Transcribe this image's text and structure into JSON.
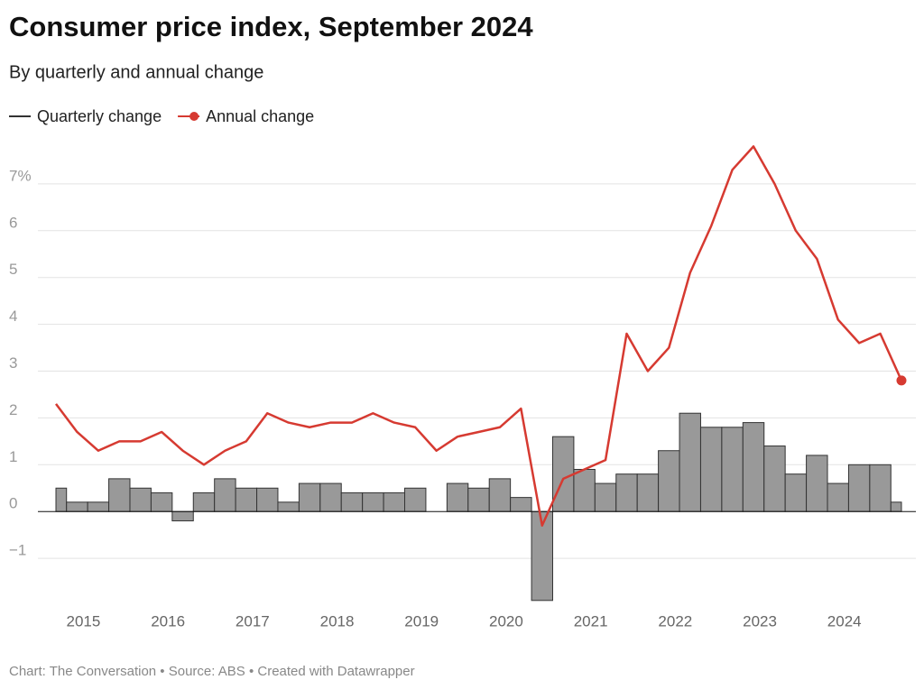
{
  "chart_data": {
    "type": "line",
    "title": "Consumer price index, September 2024",
    "subtitle": "By quarterly and annual change",
    "footer": "Chart: The Conversation • Source: ABS • Created with Datawrapper",
    "x": [
      2014.75,
      2015,
      2015.25,
      2015.5,
      2015.75,
      2016,
      2016.25,
      2016.5,
      2016.75,
      2017,
      2017.25,
      2017.5,
      2017.75,
      2018,
      2018.25,
      2018.5,
      2018.75,
      2019,
      2019.25,
      2019.5,
      2019.75,
      2020,
      2020.25,
      2020.5,
      2020.75,
      2021,
      2021.25,
      2021.5,
      2021.75,
      2022,
      2022.25,
      2022.5,
      2022.75,
      2023,
      2023.25,
      2023.5,
      2023.75,
      2024,
      2024.25,
      2024.5,
      2024.75
    ],
    "series": [
      {
        "name": "Quarterly change",
        "type": "step-area",
        "color": "#333333",
        "fill": "#999999",
        "values": [
          0.5,
          0.2,
          0.2,
          0.7,
          0.5,
          0.4,
          -0.2,
          0.4,
          0.7,
          0.5,
          0.5,
          0.2,
          0.6,
          0.6,
          0.4,
          0.4,
          0.4,
          0.5,
          0.0,
          0.6,
          0.5,
          0.7,
          0.3,
          -1.9,
          1.6,
          0.9,
          0.6,
          0.8,
          0.8,
          1.3,
          2.1,
          1.8,
          1.8,
          1.9,
          1.4,
          0.8,
          1.2,
          0.6,
          1.0,
          1.0,
          0.2
        ]
      },
      {
        "name": "Annual change",
        "type": "line",
        "color": "#d63a31",
        "values": [
          2.3,
          1.7,
          1.3,
          1.5,
          1.5,
          1.7,
          1.3,
          1.0,
          1.3,
          1.5,
          2.1,
          1.9,
          1.8,
          1.9,
          1.9,
          2.1,
          1.9,
          1.8,
          1.3,
          1.6,
          1.7,
          1.8,
          2.2,
          -0.3,
          0.7,
          0.9,
          1.1,
          3.8,
          3.0,
          3.5,
          5.1,
          6.1,
          7.3,
          7.8,
          7.0,
          6.0,
          5.4,
          4.1,
          3.6,
          3.8,
          2.8
        ]
      }
    ],
    "xlim": [
      2014.6,
      2024.85
    ],
    "xticks": [
      2015,
      2016,
      2017,
      2018,
      2019,
      2020,
      2021,
      2022,
      2023,
      2024
    ],
    "ylim": [
      -2,
      8
    ],
    "yticks": [
      {
        "value": -1,
        "label": "−1"
      },
      0,
      1,
      2,
      3,
      4,
      5,
      6,
      {
        "value": 7,
        "label": "7%"
      }
    ],
    "grid": true
  }
}
